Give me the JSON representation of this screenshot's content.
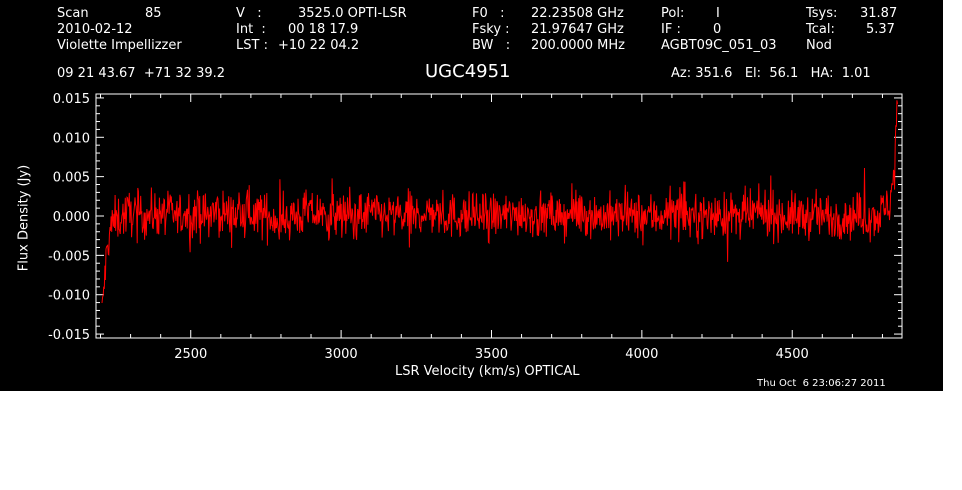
{
  "header": {
    "scan_label": "Scan",
    "scan_value": "85",
    "date": "2010-02-12",
    "observer": "Violette Impellizzer",
    "v_label": "V   :",
    "v_value": "3525.0 OPTI-LSR",
    "int_label": "Int  :",
    "int_value": "00 18 17.9",
    "lst_label": "LST :",
    "lst_value": "+10 22 04.2",
    "f0_label": "F0   :",
    "f0_value": "22.23508 GHz",
    "fsky_label": "Fsky :",
    "fsky_value": "21.97647 GHz",
    "bw_label": "BW   :",
    "bw_value": "200.0000 MHz",
    "pol_label": "Pol:",
    "pol_value": "I",
    "if_label": "IF :",
    "if_value": "0",
    "project": "AGBT09C_051_03",
    "tsys_label": "Tsys:",
    "tsys_value": "31.87",
    "tcal_label": "Tcal:",
    "tcal_value": "5.37",
    "procedure": "Nod",
    "coords": "09 21 43.67  +71 32 39.2",
    "source": "UGC4951",
    "az_el_ha": "Az: 351.6   El:  56.1   HA:  1.01",
    "timestamp": "Thu Oct  6 23:06:27 2011"
  },
  "chart_data": {
    "type": "line",
    "xlabel": "LSR Velocity (km/s) OPTICAL",
    "ylabel": "Flux Density (Jy)",
    "xlim": [
      2185,
      4865
    ],
    "ylim": [
      -0.0155,
      0.0155
    ],
    "x_ticks": [
      2500,
      3000,
      3500,
      4000,
      4500
    ],
    "x_tick_labels": [
      "2500",
      "3000",
      "3500",
      "4000",
      "4500"
    ],
    "y_ticks": [
      -0.015,
      -0.01,
      -0.005,
      0.0,
      0.005,
      0.01,
      0.015
    ],
    "y_tick_labels": [
      "-0.015",
      "-0.010",
      "-0.005",
      "0.000",
      "0.005",
      "0.010",
      "0.015"
    ],
    "series": [
      {
        "color": "#ff0000",
        "x": [
          2205,
          2210,
          2215,
          2220,
          2225,
          2230,
          2240,
          2250,
          2275,
          2300,
          2350,
          2400,
          2450,
          2500,
          2550,
          2600,
          2650,
          2700,
          2750,
          2800,
          2850,
          2900,
          2950,
          3000,
          3050,
          3100,
          3150,
          3200,
          3250,
          3300,
          3350,
          3400,
          3450,
          3500,
          3550,
          3600,
          3650,
          3700,
          3750,
          3800,
          3850,
          3900,
          3950,
          4000,
          4050,
          4100,
          4150,
          4200,
          4250,
          4300,
          4350,
          4400,
          4450,
          4500,
          4550,
          4600,
          4650,
          4700,
          4750,
          4780,
          4800,
          4815,
          4825,
          4835,
          4840,
          4845,
          4850
        ],
        "y": [
          -0.0125,
          -0.0095,
          -0.0075,
          -0.005,
          -0.0035,
          -0.002,
          -0.001,
          -0.0005,
          0.0,
          0.0005,
          0.0,
          0.0005,
          0.0,
          0.0005,
          0.0,
          0.0005,
          0.0,
          0.0005,
          0.0,
          -0.0005,
          0.0,
          0.0005,
          0.0,
          0.0,
          0.0,
          0.0005,
          0.0,
          0.0,
          0.0,
          0.0005,
          0.0,
          0.0,
          0.0,
          0.0,
          0.0,
          0.0005,
          0.0,
          0.0,
          0.0,
          0.0005,
          0.0,
          0.0,
          0.0,
          0.0,
          0.0,
          0.0005,
          0.0,
          0.0,
          0.0,
          0.0,
          0.0,
          0.0005,
          0.0,
          0.0,
          0.0,
          0.0,
          0.0,
          0.0,
          0.0,
          0.0,
          0.0005,
          0.001,
          0.002,
          0.004,
          0.007,
          0.011,
          0.013
        ],
        "noise_amplitude": 0.0035
      }
    ]
  }
}
